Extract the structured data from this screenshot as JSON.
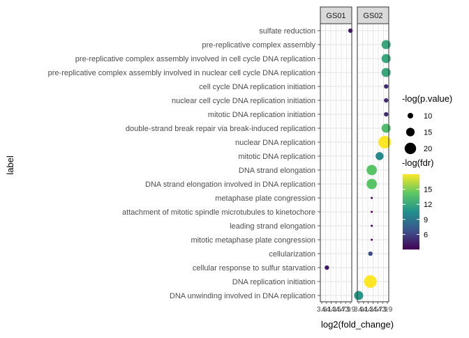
{
  "chart_data": {
    "type": "scatter",
    "ylabel": "label",
    "xlabel": "log2(fold_change)",
    "facets": [
      "GS01",
      "GS02"
    ],
    "categories": [
      "sulfate reduction",
      "pre-replicative complex assembly",
      "pre-replicative complex assembly involved in cell cycle DNA replication",
      "pre-replicative complex assembly involved in nuclear cell cycle DNA replication",
      "cell cycle DNA replication initiation",
      "nuclear cell cycle DNA replication initiation",
      "mitotic DNA replication initiation",
      "double-strand break repair via break-induced replication",
      "nuclear DNA replication",
      "mitotic DNA replication",
      "DNA strand elongation",
      "DNA strand elongation involved in DNA replication",
      "metaphase plate congression",
      "attachment of mitotic spindle microtubules to kinetochore",
      "leading strand elongation",
      "mitotic metaphase plate congression",
      "cellularization",
      "cellular response to sulfur starvation",
      "DNA replication initiation",
      "DNA unwinding involved in DNA replication"
    ],
    "panels": [
      {
        "facet": "GS01",
        "x_ticks": [
          "3.9",
          "4.1",
          "4.3",
          "4.5",
          "4.7",
          "4.9",
          "3.9"
        ],
        "xlim": [
          3.8,
          5.0
        ],
        "points": [
          {
            "label": "sulfate reduction",
            "x": 4.95,
            "pvalue": 8,
            "fdr": 4
          },
          {
            "label": "cellular response to sulfur starvation",
            "x": 4.05,
            "pvalue": 8,
            "fdr": 4
          }
        ]
      },
      {
        "facet": "GS02",
        "x_ticks": [
          "3.9",
          "4.1",
          "4.3",
          "4.5",
          "4.7",
          "4.9",
          "3.9"
        ],
        "xlim": [
          3.8,
          5.0
        ],
        "points": [
          {
            "label": "pre-replicative complex assembly",
            "x": 4.9,
            "pvalue": 16,
            "fdr": 12
          },
          {
            "label": "pre-replicative complex assembly involved in cell cycle DNA replication",
            "x": 4.9,
            "pvalue": 16,
            "fdr": 12
          },
          {
            "label": "pre-replicative complex assembly involved in nuclear cell cycle DNA replication",
            "x": 4.9,
            "pvalue": 16,
            "fdr": 12
          },
          {
            "label": "cell cycle DNA replication initiation",
            "x": 4.9,
            "pvalue": 8,
            "fdr": 5
          },
          {
            "label": "nuclear cell cycle DNA replication initiation",
            "x": 4.9,
            "pvalue": 8,
            "fdr": 5
          },
          {
            "label": "mitotic DNA replication initiation",
            "x": 4.9,
            "pvalue": 8,
            "fdr": 5
          },
          {
            "label": "double-strand break repair via break-induced replication",
            "x": 4.9,
            "pvalue": 16,
            "fdr": 13.5
          },
          {
            "label": "nuclear DNA replication",
            "x": 4.85,
            "pvalue": 22,
            "fdr": 18
          },
          {
            "label": "mitotic DNA replication",
            "x": 4.65,
            "pvalue": 14,
            "fdr": 10
          },
          {
            "label": "DNA strand elongation",
            "x": 4.35,
            "pvalue": 18,
            "fdr": 14
          },
          {
            "label": "DNA strand elongation involved in DNA replication",
            "x": 4.35,
            "pvalue": 18,
            "fdr": 14
          },
          {
            "label": "metaphase plate congression",
            "x": 4.35,
            "pvalue": 4,
            "fdr": 3
          },
          {
            "label": "attachment of mitotic spindle microtubules to kinetochore",
            "x": 4.35,
            "pvalue": 4,
            "fdr": 3
          },
          {
            "label": "leading strand elongation",
            "x": 4.35,
            "pvalue": 4,
            "fdr": 3
          },
          {
            "label": "mitotic metaphase plate congression",
            "x": 4.35,
            "pvalue": 4,
            "fdr": 3
          },
          {
            "label": "cellularization",
            "x": 4.3,
            "pvalue": 8,
            "fdr": 6.5
          },
          {
            "label": "DNA replication initiation",
            "x": 4.3,
            "pvalue": 22,
            "fdr": 18
          },
          {
            "label": "DNA unwinding involved in DNA replication",
            "x": 3.85,
            "pvalue": 16,
            "fdr": 11
          }
        ]
      }
    ],
    "size_legend": {
      "title": "-log(p.value)",
      "breaks": [
        10,
        15,
        20
      ]
    },
    "color_legend": {
      "title": "-log(fdr)",
      "breaks": [
        6,
        9,
        12,
        15
      ],
      "range": [
        3,
        18
      ],
      "palette": [
        "#440154",
        "#3b528b",
        "#21908c",
        "#5dc863",
        "#fde725"
      ]
    },
    "grid": true,
    "legend_position": "right"
  }
}
